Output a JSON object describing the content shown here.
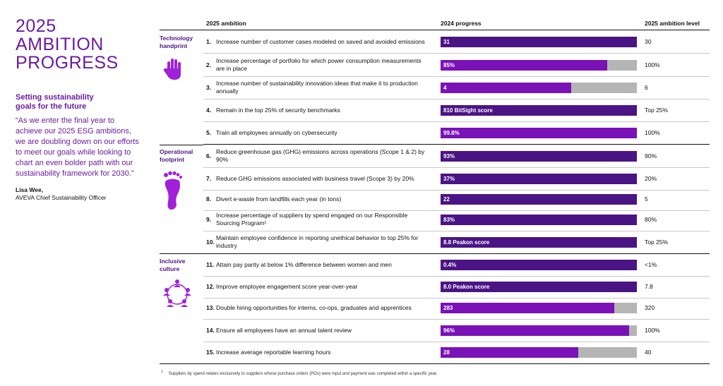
{
  "page": {
    "title_lines": [
      "2025",
      "AMBITION",
      "PROGRESS"
    ],
    "subtitle": "Setting sustainability goals for the future",
    "quote": "“As we enter the final year to achieve our 2025 ESG ambitions, we are doubling down on our efforts to meet our goals while looking to chart an even bolder path with our sustainability framework for 2030.”",
    "attribution_name": "Lisa Wee,",
    "attribution_role": "AVEVA Chief Sustainability Officer",
    "footnote_marker": "1",
    "footnote": "Suppliers by spend relates exclusively to suppliers whose purchase orders (POs) were input and payment was completed within a specific year."
  },
  "table": {
    "col_ambition": "2025 ambition",
    "col_progress": "2024 progress",
    "col_level": "2025 ambition level",
    "categories": [
      {
        "label_lines": [
          "Technology",
          "handprint"
        ],
        "icon": "hand-icon"
      },
      {
        "label_lines": [
          "Operational",
          "footprint"
        ],
        "icon": "footprint-icon"
      },
      {
        "label_lines": [
          "Inclusive",
          "culture"
        ],
        "icon": "people-circle-icon"
      }
    ],
    "rows": [
      {
        "num": "1.",
        "ambition": "Increase number of customer cases modeled on saved and avoided emissions",
        "progress_label": "31",
        "progress_fraction": 1.0,
        "fill_color": "#4b1485",
        "level": "30"
      },
      {
        "num": "2.",
        "ambition": "Increase percentage of portfolio for which power consumption measurements are in place",
        "progress_label": "85%",
        "progress_fraction": 0.85,
        "fill_color": "#7a12b8",
        "level": "100%"
      },
      {
        "num": "3.",
        "ambition": "Increase number of sustainability innovation ideas that make it to production annually",
        "progress_label": "4",
        "progress_fraction": 0.667,
        "fill_color": "#7a12b8",
        "level": "6"
      },
      {
        "num": "4.",
        "ambition": "Remain in the top 25% of security benchmarks",
        "progress_label": "810 BitSight score",
        "progress_fraction": 1.0,
        "fill_color": "#4b1485",
        "level": "Top 25%"
      },
      {
        "num": "5.",
        "ambition": "Train all employees annually on cybersecurity",
        "progress_label": "99.8%",
        "progress_fraction": 1.0,
        "fill_color": "#7a12b8",
        "level": "100%"
      },
      {
        "num": "6.",
        "ambition": "Reduce greenhouse gas (GHG) emissions across operations (Scope 1 & 2) by 90%",
        "progress_label": "93%",
        "progress_fraction": 1.0,
        "fill_color": "#4b1485",
        "level": "90%"
      },
      {
        "num": "7.",
        "ambition": "Reduce GHG emissions associated with business travel (Scope 3) by 20%",
        "progress_label": "37%",
        "progress_fraction": 1.0,
        "fill_color": "#4b1485",
        "level": "20%"
      },
      {
        "num": "8.",
        "ambition": "Divert e-waste from landfills each year (in tons)",
        "progress_label": "22",
        "progress_fraction": 1.0,
        "fill_color": "#4b1485",
        "level": "5"
      },
      {
        "num": "9.",
        "ambition": "Increase percentage of suppliers by spend engaged on our Responsible Sourcing Program¹",
        "progress_label": "83%",
        "progress_fraction": 1.0,
        "fill_color": "#4b1485",
        "level": "80%"
      },
      {
        "num": "10.",
        "ambition": "Maintain employee confidence in reporting unethical behavior to top 25% for industry",
        "progress_label": "8.8 Peakon score",
        "progress_fraction": 1.0,
        "fill_color": "#4b1485",
        "level": "Top 25%"
      },
      {
        "num": "11.",
        "ambition": "Attain pay parity at below 1% difference between women and men",
        "progress_label": "0.4%",
        "progress_fraction": 1.0,
        "fill_color": "#4b1485",
        "level": "<1%"
      },
      {
        "num": "12.",
        "ambition": "Improve employee engagement score year-over-year",
        "progress_label": "8.0 Peakon score",
        "progress_fraction": 1.0,
        "fill_color": "#4b1485",
        "level": "7.8"
      },
      {
        "num": "13.",
        "ambition": "Double hiring opportunities for interns, co-ops, graduates and apprentices",
        "progress_label": "283",
        "progress_fraction": 0.885,
        "fill_color": "#7a12b8",
        "level": "320"
      },
      {
        "num": "14.",
        "ambition": "Ensure all employees have an annual talent review",
        "progress_label": "96%",
        "progress_fraction": 0.96,
        "fill_color": "#7a12b8",
        "level": "100%"
      },
      {
        "num": "15.",
        "ambition": "Increase average reportable learning hours",
        "progress_label": "28",
        "progress_fraction": 0.7,
        "fill_color": "#7a12b8",
        "level": "40"
      }
    ]
  }
}
